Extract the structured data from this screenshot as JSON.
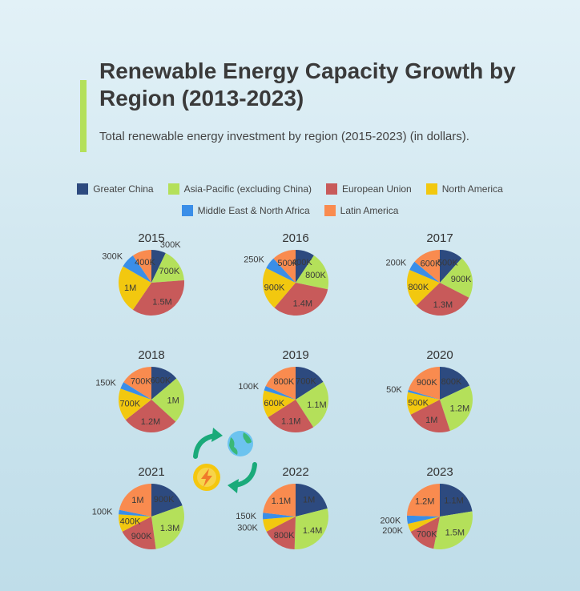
{
  "header": {
    "title": "Renewable Energy Capacity Growth by Region (2013-2023)",
    "subtitle": "Total renewable energy investment by region (2015-2023) (in dollars)."
  },
  "colors": {
    "accent_bar": "#b4e05a"
  },
  "decoration": {
    "icons": [
      "recycle-arrows-icon",
      "globe-icon",
      "lightning-bolt-icon"
    ]
  },
  "chart_data": {
    "type": "pie",
    "title": "Renewable Energy Capacity Growth by Region (2013-2023)",
    "subtitle": "Total renewable energy investment by region (2015-2023) (in dollars).",
    "legend_placement": "top",
    "series": [
      {
        "name": "Greater China",
        "color": "#2d4a7f"
      },
      {
        "name": "Asia-Pacific (excluding China)",
        "color": "#b4e05a"
      },
      {
        "name": "European Union",
        "color": "#c85a5a"
      },
      {
        "name": "North America",
        "color": "#f2c80f"
      },
      {
        "name": "Middle East & North Africa",
        "color": "#3a8ee8"
      },
      {
        "name": "Latin America",
        "color": "#f98b4f"
      }
    ],
    "pies": [
      {
        "year": "2015",
        "values": [
          300000,
          700000,
          1500000,
          1000000,
          300000,
          400000
        ],
        "labels": [
          "300K",
          "700K",
          "1.5M",
          "1M",
          "300K",
          "400K"
        ]
      },
      {
        "year": "2016",
        "values": [
          400000,
          800000,
          1400000,
          900000,
          250000,
          500000
        ],
        "labels": [
          "400K",
          "800K",
          "1.4M",
          "900K",
          "250K",
          "500K"
        ]
      },
      {
        "year": "2017",
        "values": [
          500000,
          900000,
          1300000,
          800000,
          200000,
          600000
        ],
        "labels": [
          "500K",
          "900K",
          "1.3M",
          "800K",
          "200K",
          "600K"
        ]
      },
      {
        "year": "2018",
        "values": [
          600000,
          1000000,
          1200000,
          700000,
          150000,
          700000
        ],
        "labels": [
          "600K",
          "1M",
          "1.2M",
          "700K",
          "150K",
          "700K"
        ]
      },
      {
        "year": "2019",
        "values": [
          700000,
          1100000,
          1100000,
          600000,
          100000,
          800000
        ],
        "labels": [
          "700K",
          "1.1M",
          "1.1M",
          "600K",
          "100K",
          "800K"
        ]
      },
      {
        "year": "2020",
        "values": [
          800000,
          1200000,
          1000000,
          500000,
          50000,
          900000
        ],
        "labels": [
          "800K",
          "1.2M",
          "1M",
          "500K",
          "50K",
          "900K"
        ]
      },
      {
        "year": "2021",
        "values": [
          900000,
          1300000,
          900000,
          400000,
          100000,
          1000000
        ],
        "labels": [
          "900K",
          "1.3M",
          "900K",
          "400K",
          "100K",
          "1M"
        ]
      },
      {
        "year": "2022",
        "values": [
          1000000,
          1400000,
          800000,
          300000,
          150000,
          1100000
        ],
        "labels": [
          "1M",
          "1.4M",
          "800K",
          "300K",
          "150K",
          "1.1M"
        ]
      },
      {
        "year": "2023",
        "values": [
          1100000,
          1500000,
          700000,
          200000,
          200000,
          1200000
        ],
        "labels": [
          "1.1M",
          "1.5M",
          "700K",
          "200K",
          "200K",
          "1.2M"
        ]
      }
    ]
  }
}
